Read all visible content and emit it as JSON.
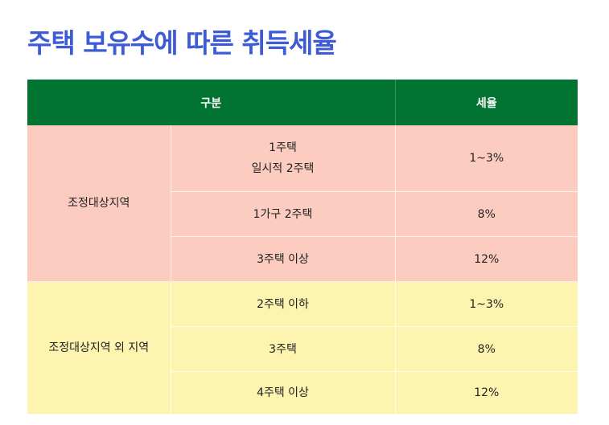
{
  "title": "주택 보유수에 따른 취득세율",
  "table": {
    "headers": {
      "category": "구분",
      "rate": "세율"
    },
    "groups": [
      {
        "region": "조정대상지역",
        "rows": [
          {
            "type_lines": [
              "1주택",
              "일시적 2주택"
            ],
            "rate": "1~3%"
          },
          {
            "type_lines": [
              "1가구 2주택"
            ],
            "rate": "8%"
          },
          {
            "type_lines": [
              "3주택 이상"
            ],
            "rate": "12%"
          }
        ]
      },
      {
        "region": "조정대상지역 외 지역",
        "rows": [
          {
            "type_lines": [
              "2주택 이하"
            ],
            "rate": "1~3%"
          },
          {
            "type_lines": [
              "3주택"
            ],
            "rate": "8%"
          },
          {
            "type_lines": [
              "4주택 이상"
            ],
            "rate": "12%"
          }
        ]
      }
    ]
  },
  "colors": {
    "title": "#3d5bd6",
    "header_bg": "#027432",
    "group1_bg": "#fcccc0",
    "group2_bg": "#fdf4b0"
  }
}
